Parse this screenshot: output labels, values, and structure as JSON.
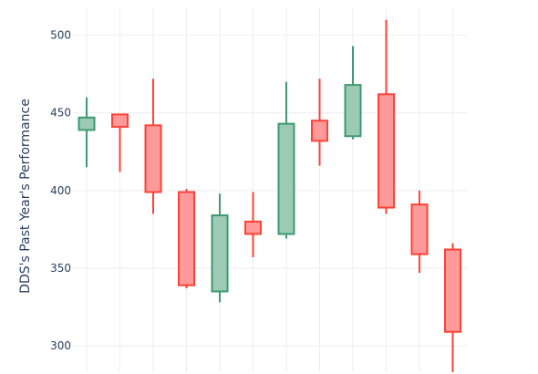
{
  "colors": {
    "increasing_fill": "#9dcab5",
    "increasing_line": "#3d9970",
    "decreasing_fill": "#ff9a9a",
    "decreasing_line": "#ff4136",
    "grid": "#ebedf0",
    "text": "#2a3f5f"
  },
  "chart_data": {
    "type": "candlestick",
    "title": "",
    "xlabel": "",
    "ylabel": "DDS's Past Year's Performance",
    "ylim": [
      283,
      518
    ],
    "yticks": [
      300,
      350,
      400,
      450,
      500
    ],
    "grid": true,
    "candles": [
      {
        "open": 439,
        "high": 460,
        "low": 415,
        "close": 447
      },
      {
        "open": 449,
        "high": 449,
        "low": 412,
        "close": 441
      },
      {
        "open": 442,
        "high": 472,
        "low": 385,
        "close": 399
      },
      {
        "open": 399,
        "high": 401,
        "low": 337,
        "close": 339
      },
      {
        "open": 335,
        "high": 398,
        "low": 328,
        "close": 384
      },
      {
        "open": 380,
        "high": 399,
        "low": 357,
        "close": 372
      },
      {
        "open": 372,
        "high": 470,
        "low": 369,
        "close": 443
      },
      {
        "open": 445,
        "high": 472,
        "low": 416,
        "close": 432
      },
      {
        "open": 435,
        "high": 493,
        "low": 433,
        "close": 468
      },
      {
        "open": 462,
        "high": 510,
        "low": 385,
        "close": 389
      },
      {
        "open": 391,
        "high": 400,
        "low": 347,
        "close": 359
      },
      {
        "open": 362,
        "high": 366,
        "low": 283,
        "close": 309
      }
    ]
  }
}
